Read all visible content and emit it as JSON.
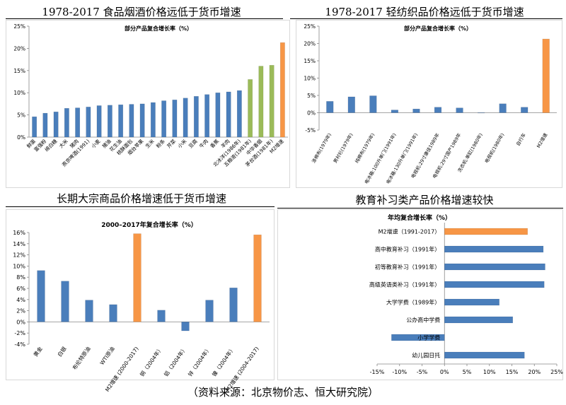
{
  "panels": [
    {
      "heading": "1978-2017 食品烟酒价格远低于货币增速",
      "chart_data": {
        "type": "bar",
        "title": "部分产品复合增长率（%）",
        "ylim": [
          0,
          25
        ],
        "yticks": [
          "0%",
          "5%",
          "10%",
          "15%",
          "20%",
          "25%"
        ],
        "categories": [
          "鲜蛋",
          "富强粉",
          "绵白糖",
          "大米",
          "猪肉",
          "燕京啤酒(1991)",
          "小麦",
          "猪油",
          "花生油",
          "桃酥面包",
          "烟台苹果",
          "生米",
          "粉条",
          "芹菜",
          "小米",
          "豆腐",
          "牛肉",
          "香蕉",
          "羊肉",
          "北冰洋(1986年)",
          "五粮液(1981年)",
          "中华香烟",
          "茅台酒(1981年)",
          "M2增速"
        ],
        "values": [
          4.6,
          5.4,
          5.7,
          6.5,
          6.6,
          6.8,
          7.1,
          7.2,
          7.3,
          7.4,
          7.5,
          7.8,
          8.2,
          8.4,
          8.8,
          9.2,
          9.6,
          10.0,
          10.2,
          10.5,
          13.0,
          16.0,
          16.2,
          21.3
        ],
        "colors": [
          "#4a7ebb",
          "#4a7ebb",
          "#4a7ebb",
          "#4a7ebb",
          "#4a7ebb",
          "#4a7ebb",
          "#4a7ebb",
          "#4a7ebb",
          "#4a7ebb",
          "#4a7ebb",
          "#4a7ebb",
          "#4a7ebb",
          "#4a7ebb",
          "#4a7ebb",
          "#4a7ebb",
          "#4a7ebb",
          "#4a7ebb",
          "#4a7ebb",
          "#4a7ebb",
          "#4a7ebb",
          "#9bbb59",
          "#9bbb59",
          "#9bbb59",
          "#f79646"
        ]
      }
    },
    {
      "heading": "1978-2017 轻纺织品价格远低于货币增速",
      "chart_data": {
        "type": "bar",
        "title": "部分产品复合增长率（%）",
        "ylim": [
          -5,
          25
        ],
        "yticks": [
          "-5%",
          "0%",
          "5%",
          "10%",
          "15%",
          "20%",
          "25%"
        ],
        "categories": [
          "涤棉布(1979年)",
          "男衬衫(1979年)",
          "纯棉布(1979年)",
          "电冰箱:100升单门(1991年)",
          "电冰箱:130升单门(1991年)",
          "电视机:29寸康佳1989年",
          "电视机:29寸国产1989年",
          "洗衣机:单缸(1980年)",
          "电视机(1980年)",
          "自行车",
          "M2增速"
        ],
        "values": [
          3.3,
          4.6,
          4.9,
          0.8,
          1.1,
          1.6,
          1.4,
          -0.1,
          2.6,
          1.6,
          21.3
        ],
        "colors": [
          "#4a7ebb",
          "#4a7ebb",
          "#4a7ebb",
          "#4a7ebb",
          "#4a7ebb",
          "#4a7ebb",
          "#4a7ebb",
          "#4a7ebb",
          "#4a7ebb",
          "#4a7ebb",
          "#f79646"
        ]
      }
    },
    {
      "heading": "长期大宗商品价格增速低于货币增速",
      "chart_data": {
        "type": "bar",
        "title": "2000–2017年复合增长率（%）",
        "ylim": [
          -4,
          16
        ],
        "yticks": [
          "-4%",
          "-2%",
          "0%",
          "2%",
          "4%",
          "6%",
          "8%",
          "10%",
          "12%",
          "14%",
          "16%"
        ],
        "categories": [
          "黄金",
          "白银",
          "布伦特原油",
          "WTI原油",
          "M2增速 (2000-2017)",
          "铜（2004年）",
          "铝（2004年）",
          "锌（2004年）",
          "镍（2004年）",
          "M2增速 (2004-2017)"
        ],
        "values": [
          9.2,
          7.3,
          3.9,
          3.1,
          15.8,
          2.1,
          -1.6,
          3.9,
          6.1,
          15.6
        ],
        "colors": [
          "#4a7ebb",
          "#4a7ebb",
          "#4a7ebb",
          "#4a7ebb",
          "#f79646",
          "#4a7ebb",
          "#4a7ebb",
          "#4a7ebb",
          "#4a7ebb",
          "#f79646"
        ]
      }
    },
    {
      "heading": "教育补习类产品价格增速较快",
      "chart_data": {
        "type": "hbar",
        "title": "年均复合增长率（%）",
        "xlim": [
          -15,
          25
        ],
        "xticks": [
          "-15%",
          "-10%",
          "-5%",
          "0%",
          "5%",
          "10%",
          "15%",
          "20%",
          "25%"
        ],
        "categories": [
          "M2增速（1991-2017）",
          "高中教育补习（1991年）",
          "初等教育补习（1991年）",
          "高级英语类补习（1991年）",
          "大学学费（1989年）",
          "公办高中学费",
          "小学学费",
          "幼儿园日托"
        ],
        "values": [
          18.5,
          22.0,
          22.4,
          22.2,
          12.2,
          15.2,
          -11.8,
          17.8
        ],
        "colors": [
          "#f79646",
          "#4a7ebb",
          "#4a7ebb",
          "#4a7ebb",
          "#4a7ebb",
          "#4a7ebb",
          "#4a7ebb",
          "#4a7ebb"
        ]
      }
    }
  ],
  "source": "（资料来源：北京物价志、恒大研究院）"
}
